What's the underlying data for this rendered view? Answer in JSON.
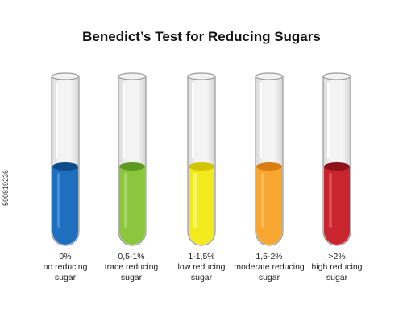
{
  "title": "Benedict’s Test for Reducing Sugars",
  "stock_id": "590819236",
  "tubes": [
    {
      "percent": "0%",
      "line1": "no reducing",
      "line2": "sugar",
      "color": "#1f6fbf",
      "dark": "#0f4d8a",
      "light": "#5a9be0"
    },
    {
      "percent": "0,5-1%",
      "line1": "trace reducing",
      "line2": "sugar",
      "color": "#8cc63f",
      "dark": "#5e9a22",
      "light": "#b4e07a"
    },
    {
      "percent": "1-1,5%",
      "line1": "low reducing",
      "line2": "sugar",
      "color": "#f2ea1c",
      "dark": "#d1c400",
      "light": "#fbf68a"
    },
    {
      "percent": "1,5-2%",
      "line1": "moderate reducing",
      "line2": "sugar",
      "color": "#f7a630",
      "dark": "#d97e12",
      "light": "#fcc872"
    },
    {
      "percent": ">2%",
      "line1": "high reducing",
      "line2": "sugar",
      "color": "#c8252f",
      "dark": "#8e121a",
      "light": "#e0606a"
    }
  ]
}
